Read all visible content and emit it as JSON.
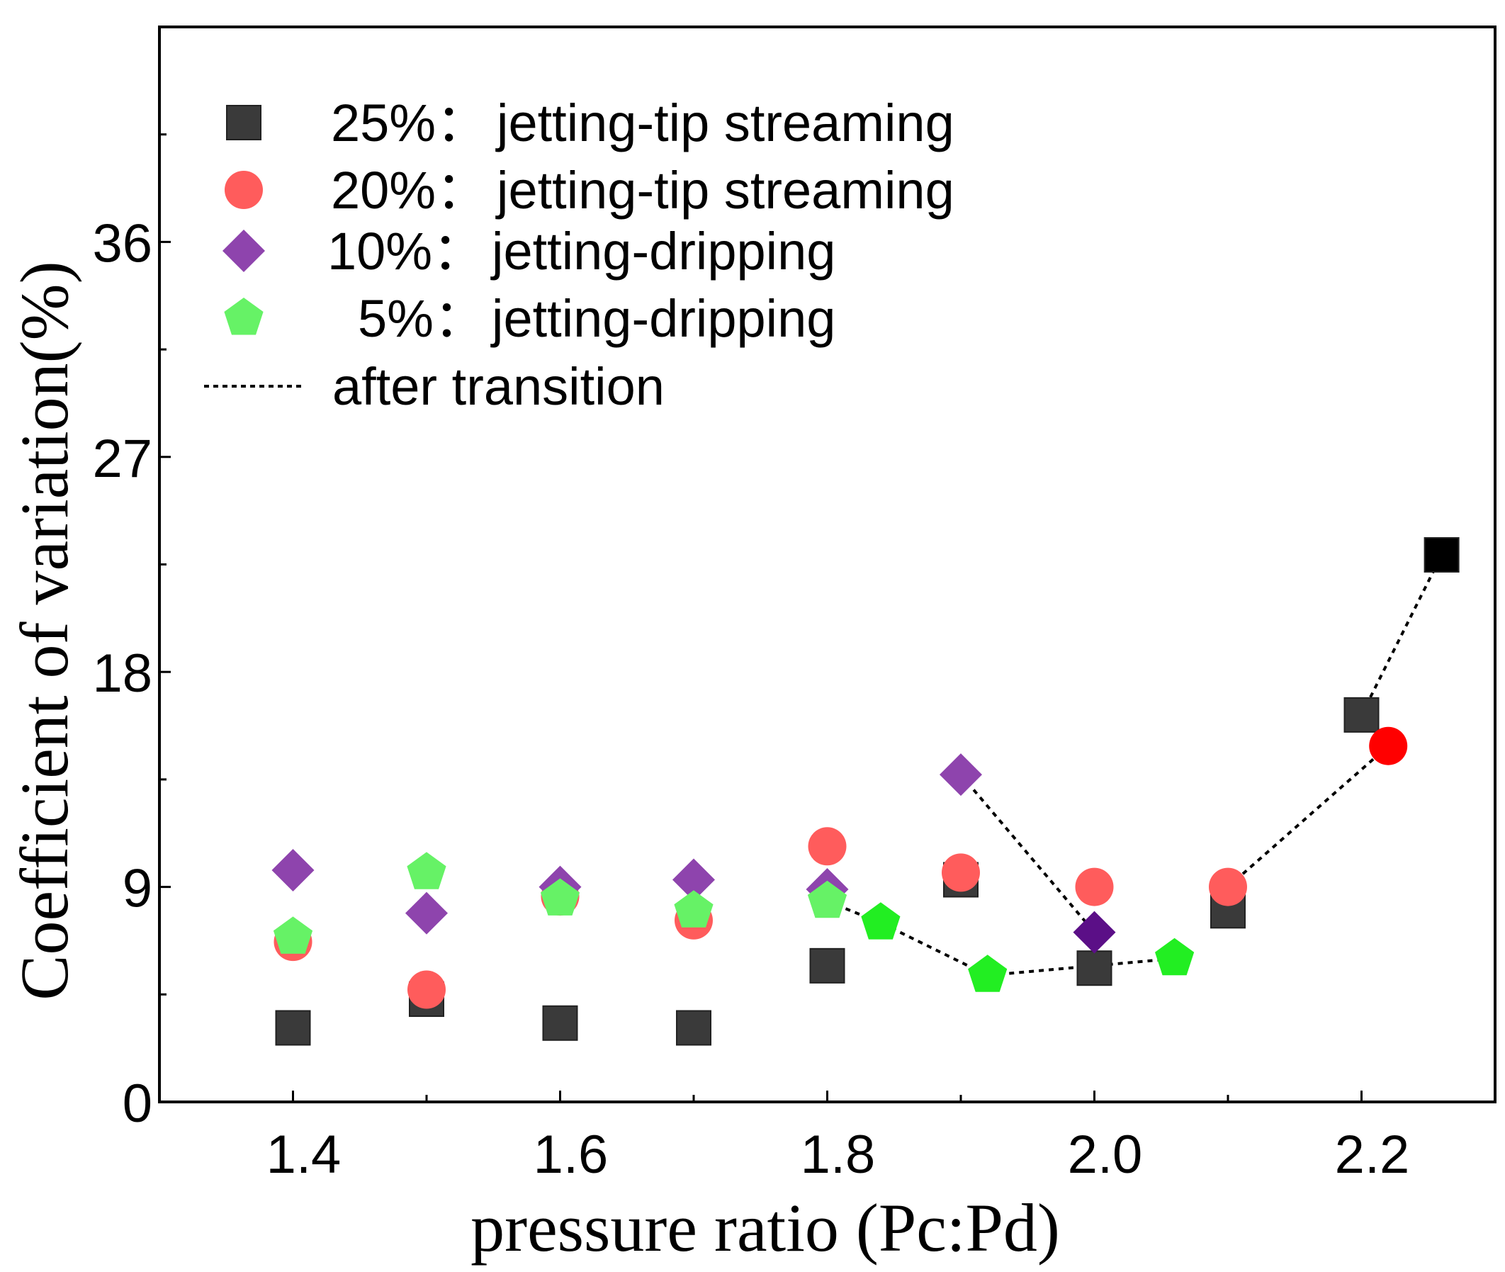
{
  "chart_data": {
    "type": "scatter",
    "title": "",
    "xlabel": "pressure ratio (Pc:Pd)",
    "ylabel": "Coefficient of variation(%)",
    "xlim": [
      1.3,
      2.3
    ],
    "ylim": [
      0,
      45
    ],
    "xticks": [
      1.4,
      1.6,
      1.8,
      2.0,
      2.2
    ],
    "xtick_labels": [
      "1.4",
      "1.6",
      "1.8",
      "2.0",
      "2.2"
    ],
    "yticks": [
      0,
      9,
      18,
      27,
      36
    ],
    "ytick_labels": [
      "0",
      "9",
      "18",
      "27",
      "36"
    ],
    "grid": false,
    "legend_position": "top-left",
    "series": [
      {
        "name": "25%",
        "label": "jetting-tip streaming",
        "marker": "square",
        "color": "#3a3a3a",
        "after_color": "#000000",
        "points": [
          [
            1.4,
            3.1
          ],
          [
            1.5,
            4.3
          ],
          [
            1.6,
            3.3
          ],
          [
            1.7,
            3.1
          ],
          [
            1.8,
            5.7
          ],
          [
            1.9,
            9.3
          ],
          [
            2.0,
            5.6
          ],
          [
            2.1,
            8.0
          ],
          [
            2.2,
            16.2
          ],
          [
            2.26,
            22.9
          ]
        ],
        "after_transition_from": 8
      },
      {
        "name": "20%",
        "label": "jetting-tip streaming",
        "marker": "circle",
        "color": "#ff5c5c",
        "after_color": "#ff0000",
        "points": [
          [
            1.4,
            6.7
          ],
          [
            1.5,
            4.7
          ],
          [
            1.6,
            8.6
          ],
          [
            1.7,
            7.6
          ],
          [
            1.8,
            10.7
          ],
          [
            1.9,
            9.6
          ],
          [
            2.0,
            9.0
          ],
          [
            2.1,
            9.0
          ],
          [
            2.22,
            14.9
          ]
        ],
        "after_transition_from": 7
      },
      {
        "name": "10%",
        "label": "jetting-dripping",
        "marker": "diamond",
        "color": "#8e44ad",
        "after_color": "#5b0f87",
        "points": [
          [
            1.4,
            9.7
          ],
          [
            1.5,
            7.9
          ],
          [
            1.6,
            9.0
          ],
          [
            1.7,
            9.3
          ],
          [
            1.8,
            8.9
          ],
          [
            1.9,
            13.7
          ],
          [
            2.0,
            7.1
          ]
        ],
        "after_transition_from": 5
      },
      {
        "name": "5%",
        "label": "jetting-dripping",
        "marker": "pentagon",
        "color": "#66f266",
        "after_color": "#22ee22",
        "points": [
          [
            1.4,
            6.9
          ],
          [
            1.5,
            9.6
          ],
          [
            1.6,
            8.5
          ],
          [
            1.7,
            8.0
          ],
          [
            1.8,
            8.4
          ],
          [
            1.84,
            7.5
          ],
          [
            1.92,
            5.3
          ],
          [
            2.06,
            6.0
          ]
        ],
        "after_transition_from": 4
      }
    ],
    "legend": [
      {
        "pct": "25%：",
        "text": "jetting-tip streaming"
      },
      {
        "pct": "20%：",
        "text": "jetting-tip streaming"
      },
      {
        "pct": "10%：",
        "text": "jetting-dripping"
      },
      {
        "pct": "5%：",
        "text": "jetting-dripping"
      },
      {
        "pct": "",
        "text": "after transition"
      }
    ]
  }
}
